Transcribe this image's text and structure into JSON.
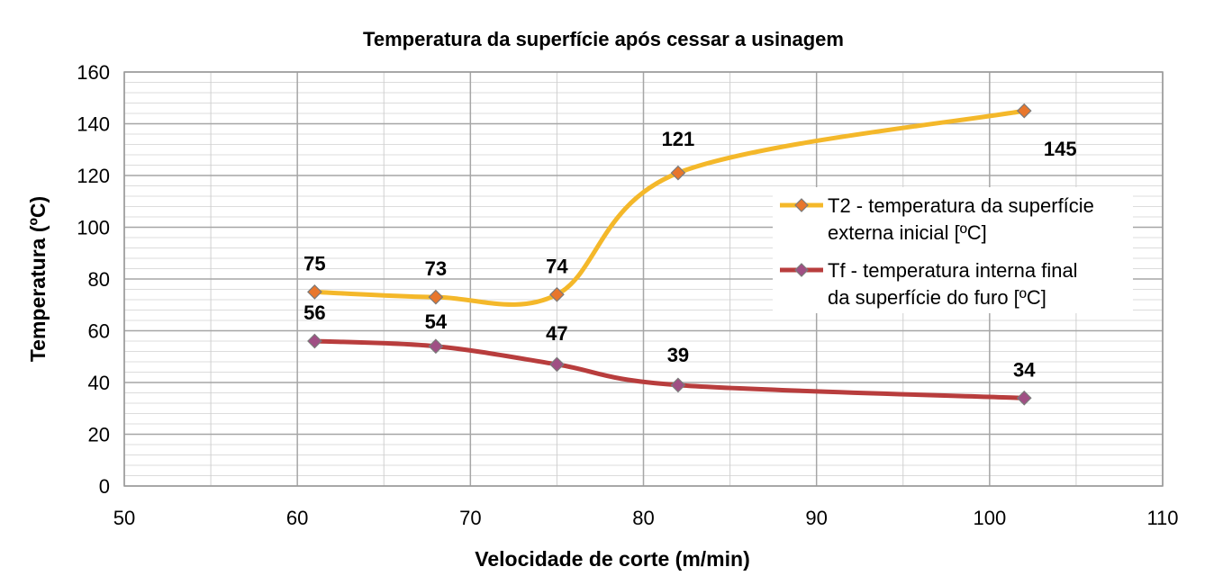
{
  "chart_data": {
    "type": "line",
    "title": "Temperatura da superfície após cessar a usinagem",
    "xlabel": "Velocidade de corte (m/min)",
    "ylabel": "Temperatura (ºC)",
    "xlim": [
      50,
      110
    ],
    "ylim": [
      0,
      160
    ],
    "x_ticks": [
      "50",
      "60",
      "70",
      "80",
      "90",
      "100",
      "110"
    ],
    "y_ticks": [
      "0",
      "20",
      "40",
      "60",
      "80",
      "100",
      "120",
      "140",
      "160"
    ],
    "grid": true,
    "smooth": true,
    "legend_position": "right",
    "series": [
      {
        "name": "T2 - temperatura da superfície externa inicial [ºC]",
        "legend_lines": [
          "T2 - temperatura da superfície",
          "externa inicial [ºC]"
        ],
        "line_color": "#F4B82A",
        "marker_color": "#E8762C",
        "points": [
          {
            "x": 61,
            "y": 75,
            "label": "75"
          },
          {
            "x": 68,
            "y": 73,
            "label": "73"
          },
          {
            "x": 75,
            "y": 74,
            "label": "74"
          },
          {
            "x": 82,
            "y": 121,
            "label": "121"
          },
          {
            "x": 102,
            "y": 145,
            "label": "145"
          }
        ]
      },
      {
        "name": "Tf - temperatura interna final da superfície do furo [ºC]",
        "legend_lines": [
          "Tf - temperatura interna final",
          "da superfície do furo [ºC]"
        ],
        "line_color": "#B83D3D",
        "marker_color": "#A04F84",
        "points": [
          {
            "x": 61,
            "y": 56,
            "label": "56"
          },
          {
            "x": 68,
            "y": 54,
            "label": "54"
          },
          {
            "x": 75,
            "y": 47,
            "label": "47"
          },
          {
            "x": 82,
            "y": 39,
            "label": "39"
          },
          {
            "x": 102,
            "y": 34,
            "label": "34"
          }
        ]
      }
    ]
  }
}
